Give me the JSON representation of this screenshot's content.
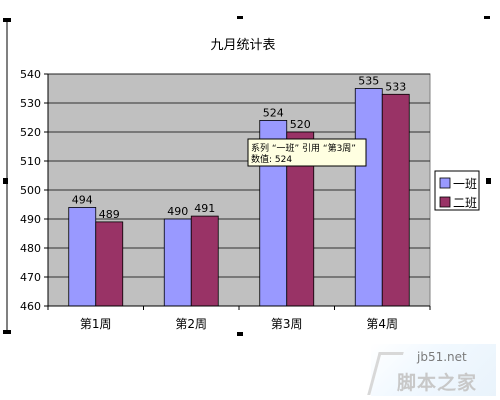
{
  "chart_data": {
    "type": "bar",
    "title": "九月统计表",
    "categories": [
      "第1周",
      "第2周",
      "第3周",
      "第4周"
    ],
    "series": [
      {
        "name": "一班",
        "color": "#9999ff",
        "values": [
          494,
          490,
          524,
          535
        ]
      },
      {
        "name": "二班",
        "color": "#993366",
        "values": [
          489,
          491,
          520,
          533
        ]
      }
    ],
    "ylim": [
      460,
      540
    ],
    "yticks": [
      460,
      470,
      480,
      490,
      500,
      510,
      520,
      530,
      540
    ],
    "grid": true,
    "plot_background": "#c0c0c0",
    "legend_position": "right"
  },
  "tooltip": {
    "line1": "系列 “一班” 引用 “第3周”",
    "line2": "数值: 524"
  },
  "watermark": {
    "url": "jb51.net",
    "name": "脚本之家"
  }
}
